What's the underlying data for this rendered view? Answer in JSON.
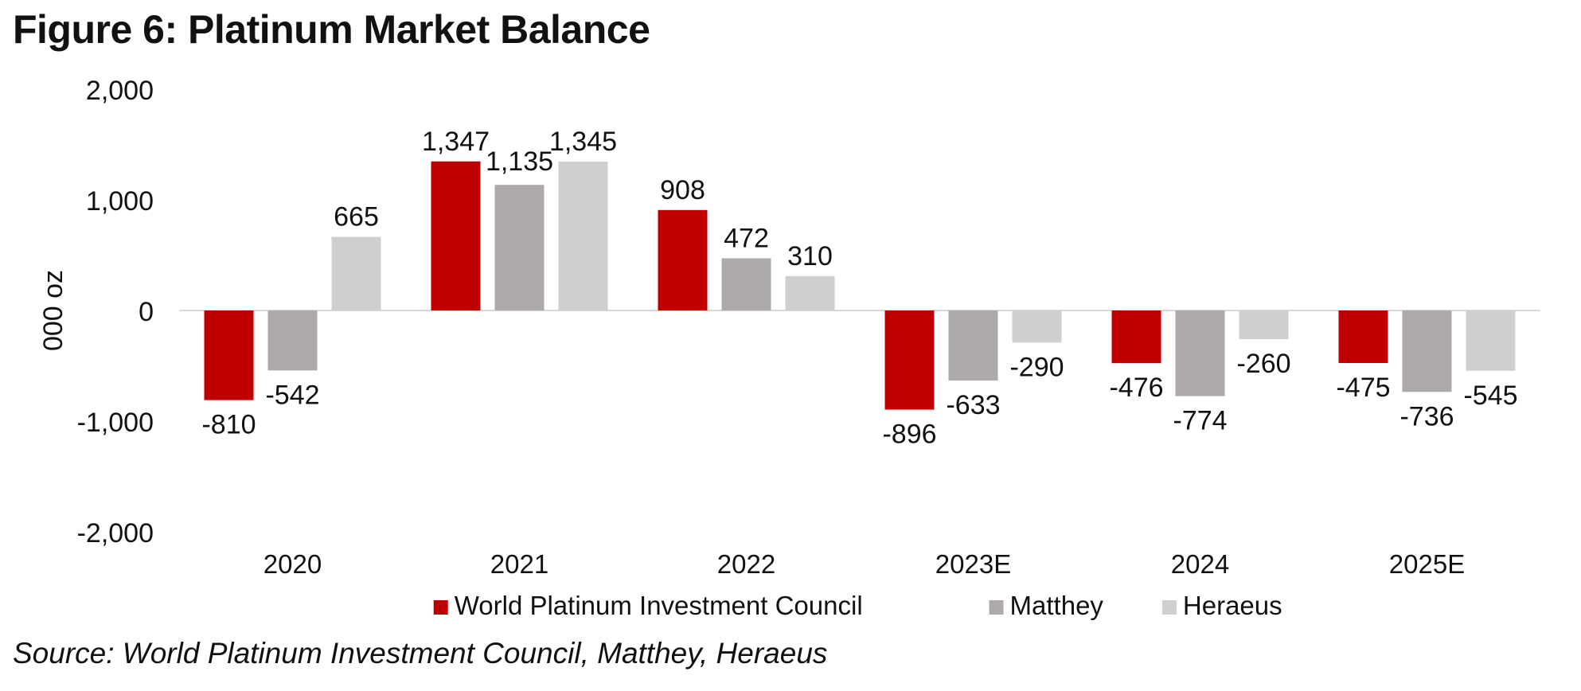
{
  "figure_title": "Figure 6: Platinum Market Balance",
  "source_note": "Source: World Platinum Investment Council, Matthey, Heraeus",
  "chart_data": {
    "type": "bar",
    "title": "Figure 6: Platinum Market Balance",
    "xlabel": "",
    "ylabel": "000 oz",
    "ylim": [
      -2000,
      2000
    ],
    "yticks": [
      -2000,
      -1000,
      0,
      1000,
      2000
    ],
    "ytick_labels": [
      "-2,000",
      "-1,000",
      "0",
      "1,000",
      "2,000"
    ],
    "categories": [
      "2020",
      "2021",
      "2022",
      "2023E",
      "2024",
      "2025E"
    ],
    "series": [
      {
        "name": "World Platinum Investment Council",
        "color": "#c00000",
        "values": [
          -810,
          1347,
          908,
          -896,
          -476,
          -475
        ],
        "labels": [
          "-810",
          "1,347",
          "908",
          "-896",
          "-476",
          "-475"
        ]
      },
      {
        "name": "Matthey",
        "color": "#aeaaaa",
        "values": [
          -542,
          1135,
          472,
          -633,
          -774,
          -736
        ],
        "labels": [
          "-542",
          "1,135",
          "472",
          "-633",
          "-774",
          "-736"
        ]
      },
      {
        "name": "Heraeus",
        "color": "#d0cece",
        "values": [
          665,
          1345,
          310,
          -290,
          -260,
          -545
        ],
        "labels": [
          "665",
          "1,345",
          "310",
          "-290",
          "-260",
          "-545"
        ]
      }
    ],
    "grid": false,
    "legend_position": "bottom-center"
  }
}
